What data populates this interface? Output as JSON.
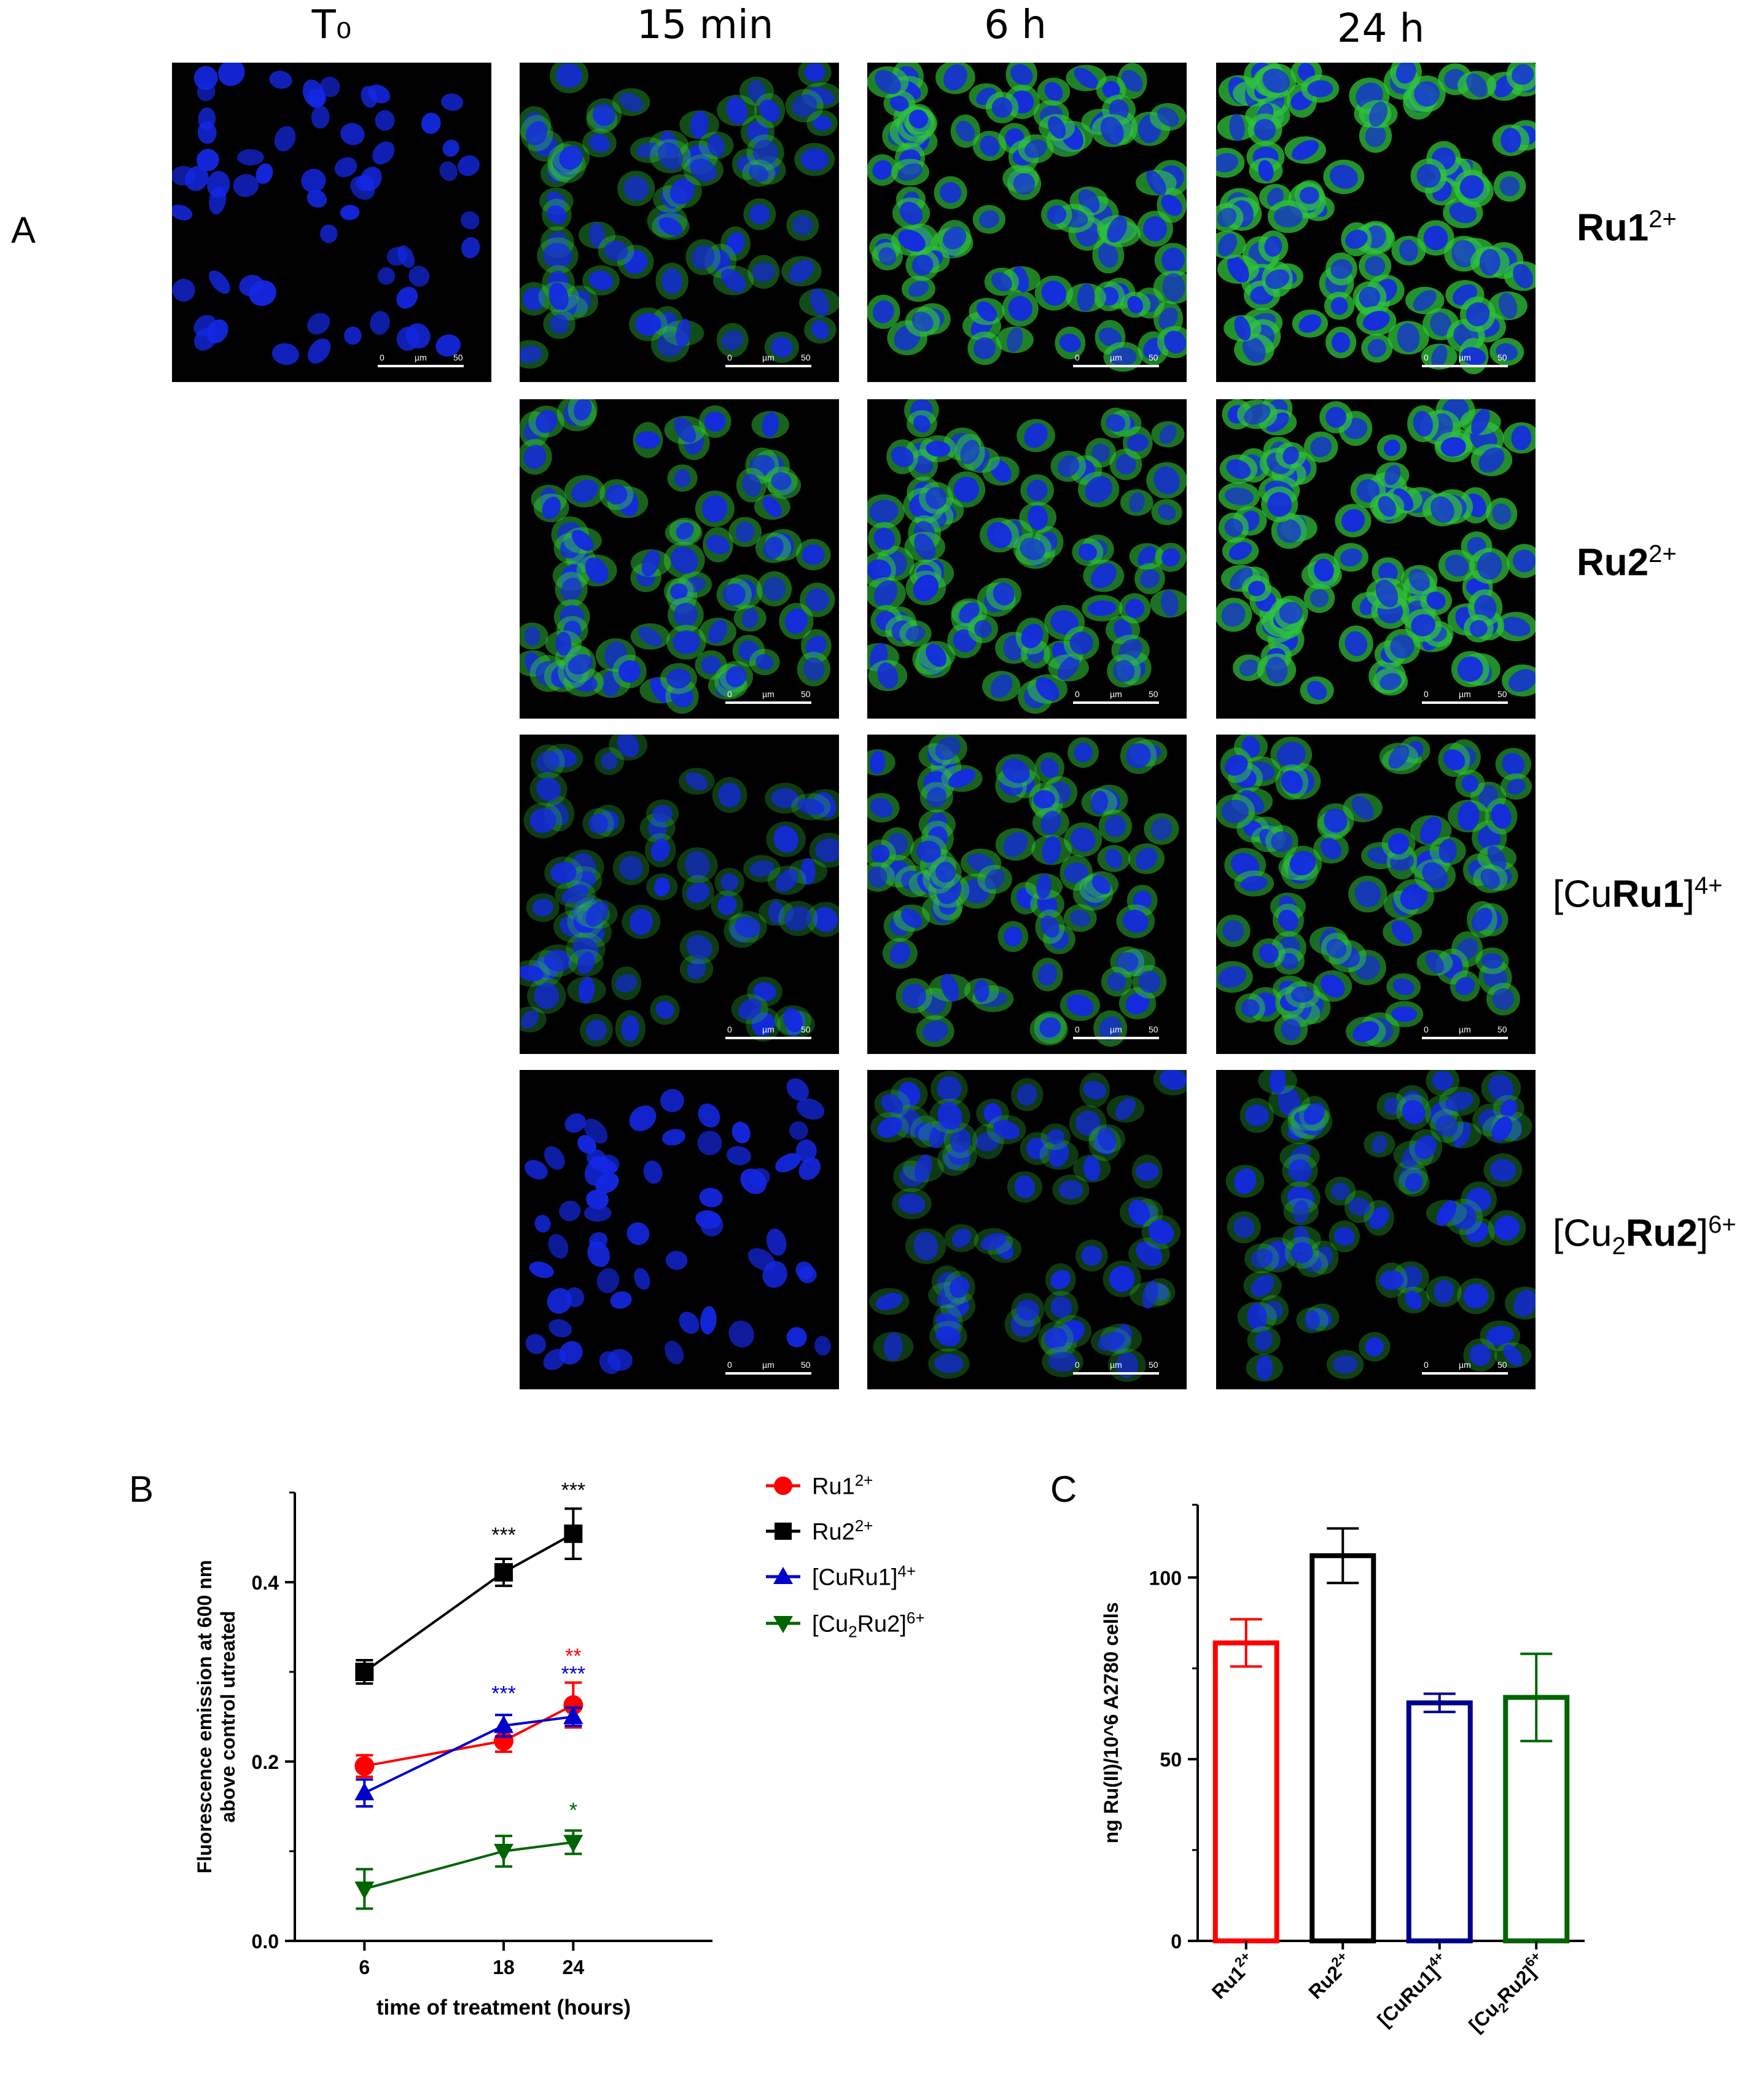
{
  "panel_a": {
    "letter": "A",
    "column_headers": [
      "T₀",
      "15 min",
      "6 h",
      "24 h"
    ],
    "rows": [
      {
        "label_pre": "",
        "label_bold": "Ru1",
        "label_sub": "",
        "label_post": "",
        "charge": "2+"
      },
      {
        "label_pre": "",
        "label_bold": "Ru2",
        "label_sub": "",
        "label_post": "",
        "charge": "2+"
      },
      {
        "label_pre": "[Cu",
        "label_bold": "Ru1",
        "label_sub": "",
        "label_post": "]",
        "charge": "4+"
      },
      {
        "label_pre": "[Cu",
        "label_bold": "Ru2",
        "label_sub": "2",
        "label_post": "]",
        "charge": "6+"
      }
    ],
    "scale_bar": {
      "start": "0",
      "unit": "µm",
      "end": "50"
    },
    "colors": {
      "nuclei": "#1428e6",
      "probe": "#2fc43a",
      "background": "#000000"
    }
  },
  "panel_b": {
    "letter": "B",
    "legend": [
      {
        "name": "Ru1",
        "sub": "",
        "charge": "2+",
        "color": "#ff0000",
        "marker": "circle"
      },
      {
        "name": "Ru2",
        "sub": "",
        "charge": "2+",
        "color": "#000000",
        "marker": "square"
      },
      {
        "name": "[CuRu1]",
        "sub": "",
        "charge": "4+",
        "color": "#0000cc",
        "marker": "triangle-up"
      },
      {
        "name_pre": "[Cu",
        "name": "Ru2]",
        "sub": "2",
        "charge": "6+",
        "color": "#006400",
        "marker": "triangle-down"
      }
    ]
  },
  "panel_c": {
    "letter": "C",
    "category_labels": [
      {
        "text": "Ru1",
        "sub": "",
        "charge": "2+"
      },
      {
        "text": "Ru2",
        "sub": "",
        "charge": "2+"
      },
      {
        "text": "[CuRu1]",
        "sub": "",
        "charge": "4+"
      },
      {
        "text_pre": "[Cu",
        "text": "Ru2]",
        "sub": "2",
        "charge": "6+"
      }
    ]
  },
  "chart_data": [
    {
      "type": "line",
      "xlabel": "time of treatment (hours)",
      "ylabel_line1": "Fluorescence emission at 600 nm",
      "ylabel_line2": "above control utreated",
      "x": [
        6,
        18,
        24
      ],
      "xticks": [
        "6",
        "18",
        "24"
      ],
      "ylim": [
        0.0,
        0.5
      ],
      "yticks": [
        "0.0",
        "0.2",
        "0.4"
      ],
      "series": [
        {
          "key": "ru1",
          "values": [
            0.195,
            0.223,
            0.263
          ],
          "errors": [
            0.012,
            0.012,
            0.025
          ],
          "color": "#ff0000",
          "marker": "circle",
          "significance": [
            {
              "x": 24,
              "text": "**",
              "at": 0.31
            }
          ]
        },
        {
          "key": "ru2",
          "values": [
            0.3,
            0.411,
            0.454
          ],
          "errors": [
            0.013,
            0.015,
            0.028
          ],
          "color": "#000000",
          "marker": "square",
          "significance": [
            {
              "x": 18,
              "text": "***",
              "at": 0.445
            },
            {
              "x": 24,
              "text": "***",
              "at": 0.495
            }
          ]
        },
        {
          "key": "curu1",
          "values": [
            0.165,
            0.24,
            0.25
          ],
          "errors": [
            0.015,
            0.012,
            0.01
          ],
          "color": "#0000cc",
          "marker": "triangle-up",
          "significance": [
            {
              "x": 18,
              "text": "***",
              "at": 0.268
            },
            {
              "x": 24,
              "text": "***",
              "at": 0.29
            }
          ]
        },
        {
          "key": "cu2ru2",
          "values": [
            0.058,
            0.1,
            0.11
          ],
          "errors": [
            0.022,
            0.017,
            0.013
          ],
          "color": "#006400",
          "marker": "triangle-down",
          "significance": [
            {
              "x": 24,
              "text": "*",
              "at": 0.138
            }
          ]
        }
      ]
    },
    {
      "type": "bar",
      "ylabel": "ng Ru(II)/10^6 A2780 cells",
      "categories": [
        "Ru1 2+",
        "Ru2 2+",
        "[CuRu1] 4+",
        "[Cu2Ru2] 6+"
      ],
      "values": [
        82,
        106,
        65.5,
        67
      ],
      "errors": [
        6.5,
        7.5,
        2.5,
        12
      ],
      "colors": [
        "#ff0000",
        "#000000",
        "#00008b",
        "#006400"
      ],
      "ylim": [
        0,
        120
      ],
      "yticks": [
        "0",
        "50",
        "100"
      ]
    }
  ]
}
